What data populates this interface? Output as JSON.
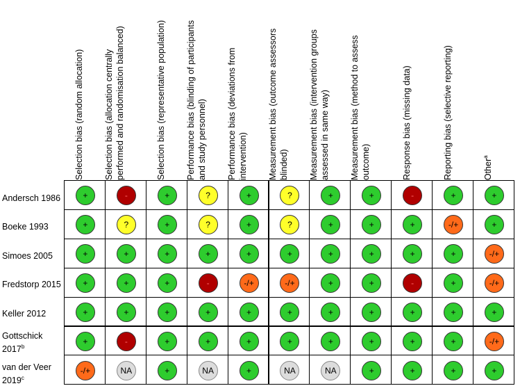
{
  "columns": [
    {
      "label": "Selection bias (random allocation)"
    },
    {
      "label": "Selection bias (allocation centrally performed and randomisation balanced)"
    },
    {
      "label": "Selection bias (representative population)"
    },
    {
      "label": "Performance bias (blinding of participants and study personnel)"
    },
    {
      "label": "Performance bias (deviations from intervention)"
    },
    {
      "label": "Measurement bias (outcome assessors blinded)"
    },
    {
      "label": "Measurement bias (intervention groups assessed in same way)"
    },
    {
      "label": "Measurement bias (method to assess outcome)"
    },
    {
      "label": "Response bias (missing data)"
    },
    {
      "label": "Reporting bias (selective reporting)"
    },
    {
      "label": "Other",
      "sup": "a"
    }
  ],
  "rows": [
    {
      "label": "Andersch 1986",
      "sup": "",
      "cells": [
        "+",
        "-",
        "+",
        "?",
        "+",
        "?",
        "+",
        "+",
        "-",
        "+",
        "+"
      ]
    },
    {
      "label": "Boeke 1993",
      "sup": "",
      "cells": [
        "+",
        "?",
        "+",
        "?",
        "+",
        "?",
        "+",
        "+",
        "+",
        "-/+",
        "+"
      ]
    },
    {
      "label": "Simoes 2005",
      "sup": "",
      "cells": [
        "+",
        "+",
        "+",
        "+",
        "+",
        "+",
        "+",
        "+",
        "+",
        "+",
        "-/+"
      ]
    },
    {
      "label": "Fredstorp 2015",
      "sup": "",
      "cells": [
        "+",
        "+",
        "+",
        "-",
        "-/+",
        "-/+",
        "+",
        "+",
        "-",
        "+",
        "-/+"
      ]
    },
    {
      "label": "Keller 2012",
      "sup": "",
      "cells": [
        "+",
        "+",
        "+",
        "+",
        "+",
        "+",
        "+",
        "+",
        "+",
        "+",
        "+"
      ]
    },
    {
      "label": "Gottschick 2017",
      "sup": "b",
      "cells": [
        "+",
        "-",
        "+",
        "+",
        "+",
        "+",
        "+",
        "+",
        "+",
        "+",
        "-/+"
      ]
    },
    {
      "label": "van der Veer 2019",
      "sup": "c",
      "cells": [
        "-/+",
        "NA",
        "+",
        "NA",
        "+",
        "NA",
        "NA",
        "+",
        "+",
        "+",
        "+"
      ]
    }
  ],
  "colors": {
    "low": "#2ecc2e",
    "high": "#b00000",
    "unclear": "#ffff2a",
    "some": "#ff6a1a",
    "na": "#dcdcdc"
  }
}
